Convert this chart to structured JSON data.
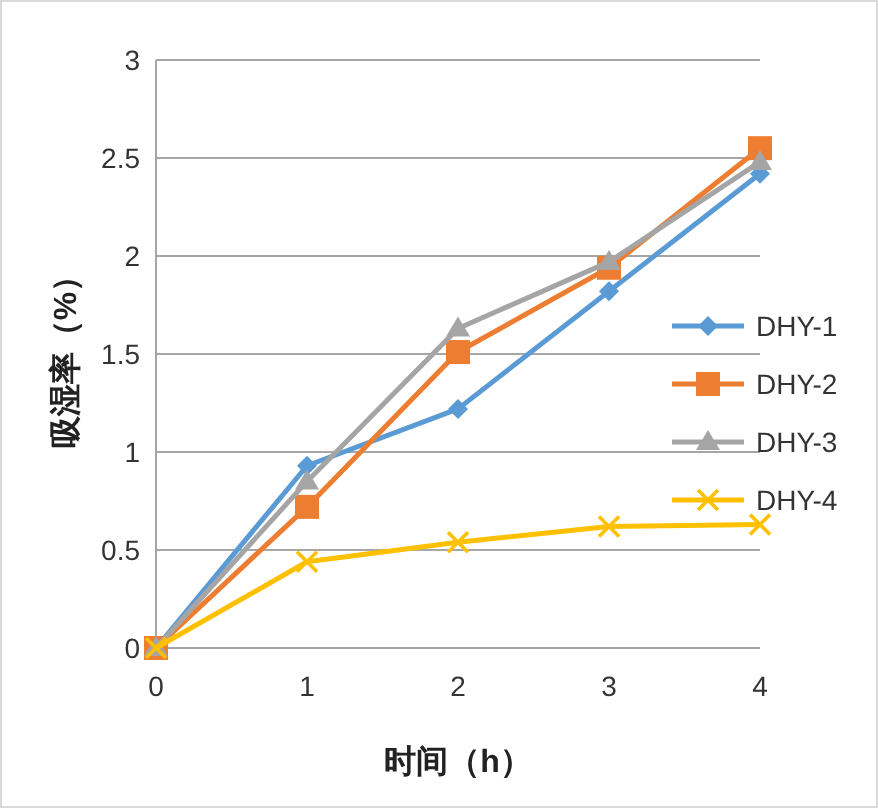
{
  "chart_data": {
    "type": "line",
    "xlabel": "时间（h）",
    "ylabel": "吸湿率（%）",
    "x": [
      0,
      1,
      2,
      3,
      4
    ],
    "xlim": [
      0,
      4
    ],
    "xticks": [
      0,
      1,
      2,
      3,
      4
    ],
    "ylim": [
      0,
      3
    ],
    "yticks": [
      0,
      0.5,
      1,
      1.5,
      2,
      2.5,
      3
    ],
    "grid": "y",
    "legend": "right",
    "series": [
      {
        "name": "DHY-1",
        "color": "#5b9bd5",
        "marker": "diamond",
        "values": [
          0,
          0.93,
          1.22,
          1.82,
          2.42
        ]
      },
      {
        "name": "DHY-2",
        "color": "#ed7d31",
        "marker": "square",
        "values": [
          0,
          0.72,
          1.51,
          1.94,
          2.55
        ]
      },
      {
        "name": "DHY-3",
        "color": "#a5a5a5",
        "marker": "triangle",
        "values": [
          0,
          0.85,
          1.63,
          1.97,
          2.48
        ]
      },
      {
        "name": "DHY-4",
        "color": "#ffc000",
        "marker": "cross",
        "values": [
          0,
          0.44,
          0.54,
          0.62,
          0.63
        ]
      }
    ]
  }
}
